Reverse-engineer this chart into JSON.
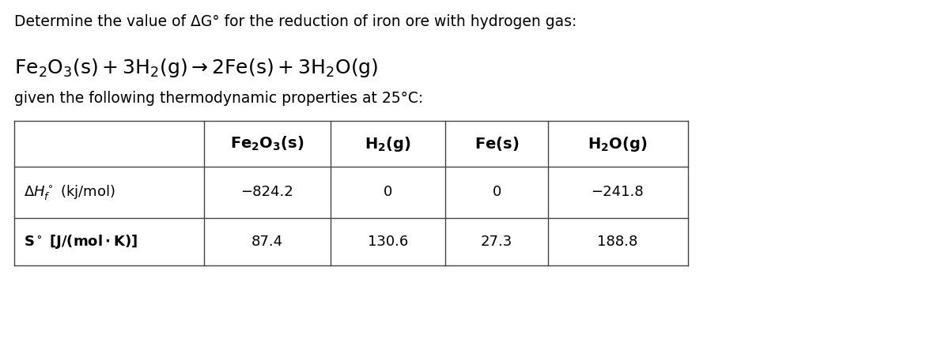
{
  "title_line": "Determine the value of ΔG° for the reduction of iron ore with hydrogen gas:",
  "subtitle_line": "given the following thermodynamic properties at 25°C:",
  "dh_fe2o3": "−824.2",
  "dh_h2": "0",
  "dh_fe": "0",
  "dh_h2o": "−241.8",
  "s_fe2o3": "87.4",
  "s_h2": "130.6",
  "s_fe": "27.3",
  "s_h2o": "188.8",
  "bg_color": "#ffffff",
  "text_color": "#000000",
  "table_border_color": "#444444",
  "title_fontsize": 13.5,
  "eq_fontsize": 18,
  "subtitle_fontsize": 13.5,
  "table_fontsize": 13,
  "header_fontsize": 14
}
